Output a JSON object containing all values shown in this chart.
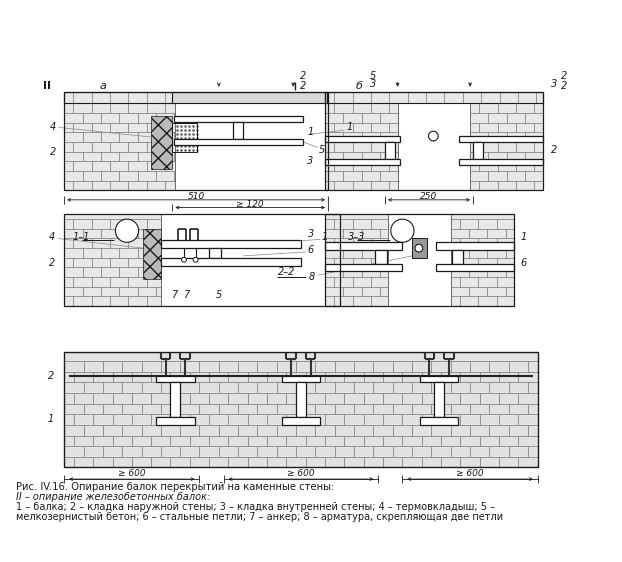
{
  "caption_line1": "Рис. IV.16. Опирание балок перекрытий на каменные стены:",
  "caption_line2": "II – опирание железобетонных балок:",
  "caption_line3": "1 – балка; 2 – кладка наружной стены; 3 – кладка внутренней стены; 4 – термовкладыш; 5 –",
  "caption_line4": "мелкозернистый бетон; 6 – стальные петли; 7 – анкер; 8 – арматура, скрепляющая две петли",
  "bg_color": "#ffffff"
}
